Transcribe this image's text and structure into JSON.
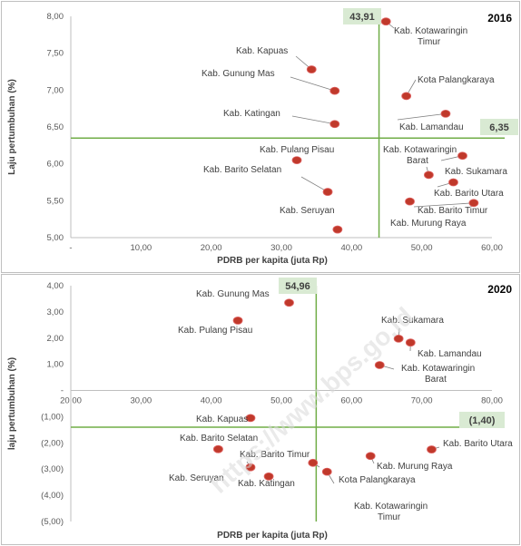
{
  "watermark": "https://www.bps.go.id",
  "chart_data": [
    {
      "type": "scatter",
      "year_label": "2016",
      "xlabel": "PDRB per kapita (juta Rp)",
      "ylabel": "Laju pertumbuhan (%)",
      "xlim": [
        0,
        60
      ],
      "ylim": [
        5.0,
        8.0
      ],
      "x_ticks": [
        "-",
        "10,00",
        "20,00",
        "30,00",
        "40,00",
        "50,00",
        "60,00"
      ],
      "y_ticks": [
        "5,00",
        "5,50",
        "6,00",
        "6,50",
        "7,00",
        "7,50",
        "8,00"
      ],
      "ref_x": 43.91,
      "ref_y": 6.35,
      "ref_x_label": "43,91",
      "ref_y_label": "6,35",
      "points": [
        {
          "label": "Kab. Kotawaringin Timur",
          "x": 44.9,
          "y": 7.93
        },
        {
          "label": "Kab. Kapuas",
          "x": 34.3,
          "y": 7.28
        },
        {
          "label": "Kab. Gunung Mas",
          "x": 37.6,
          "y": 6.99
        },
        {
          "label": "Kota Palangkaraya",
          "x": 47.8,
          "y": 6.92
        },
        {
          "label": "Kab. Lamandau",
          "x": 53.4,
          "y": 6.68
        },
        {
          "label": "Kab. Katingan",
          "x": 37.6,
          "y": 6.54
        },
        {
          "label": "Kab. Pulang Pisau",
          "x": 32.2,
          "y": 6.05
        },
        {
          "label": "Kab. Kotawaringin Barat",
          "x": 51.0,
          "y": 5.85
        },
        {
          "label": "Kab. Sukamara",
          "x": 55.8,
          "y": 6.11
        },
        {
          "label": "Kab. Barito Selatan",
          "x": 36.6,
          "y": 5.62
        },
        {
          "label": "Kab. Barito Utara",
          "x": 54.5,
          "y": 5.75
        },
        {
          "label": "Kab. Barito Timur",
          "x": 57.4,
          "y": 5.47
        },
        {
          "label": "Kab. Murung Raya",
          "x": 48.3,
          "y": 5.49
        },
        {
          "label": "Kab. Seruyan",
          "x": 38.0,
          "y": 5.11
        }
      ]
    },
    {
      "type": "scatter",
      "year_label": "2020",
      "xlabel": "PDRB per kapita (juta Rp)",
      "ylabel": "laju pertumbuhan (%)",
      "xlim": [
        20,
        80
      ],
      "ylim": [
        -5.0,
        4.0
      ],
      "x_ticks": [
        "20,00",
        "30,00",
        "40,00",
        "50,00",
        "60,00",
        "70,00",
        "80,00"
      ],
      "y_ticks": [
        "(5,00)",
        "(4,00)",
        "(3,00)",
        "(2,00)",
        "(1,00)",
        "-",
        "1,00",
        "2,00",
        "3,00",
        "4,00"
      ],
      "ref_x": 54.96,
      "ref_y": -1.4,
      "ref_x_label": "54,96",
      "ref_y_label": "(1,40)",
      "points": [
        {
          "label": "Kab. Gunung Mas",
          "x": 51.1,
          "y": 3.35
        },
        {
          "label": "Kab. Pulang Pisau",
          "x": 43.8,
          "y": 2.67
        },
        {
          "label": "Kab. Sukamara",
          "x": 66.7,
          "y": 1.98
        },
        {
          "label": "Kab. Lamandau",
          "x": 68.4,
          "y": 1.83
        },
        {
          "label": "Kab. Kotawaringin Barat",
          "x": 64.0,
          "y": 0.97
        },
        {
          "label": "Kab. Kapuas",
          "x": 45.6,
          "y": -1.05
        },
        {
          "label": "Kab. Barito Selatan",
          "x": 41.0,
          "y": -2.24
        },
        {
          "label": "Kab. Barito Timur",
          "x": 45.6,
          "y": -2.93
        },
        {
          "label": "Kab. Seruyan",
          "x": 41.0,
          "y": -2.24
        },
        {
          "label": "Kab. Katingan",
          "x": 48.2,
          "y": -3.28
        },
        {
          "label": "Kota Palangkaraya",
          "x": 54.5,
          "y": -2.76
        },
        {
          "label": "Kab. Kotawaringin Timur",
          "x": 56.5,
          "y": -3.1
        },
        {
          "label": "Kab. Murung Raya",
          "x": 62.7,
          "y": -2.5
        },
        {
          "label": "Kab. Barito Utara",
          "x": 71.4,
          "y": -2.25
        }
      ]
    }
  ]
}
